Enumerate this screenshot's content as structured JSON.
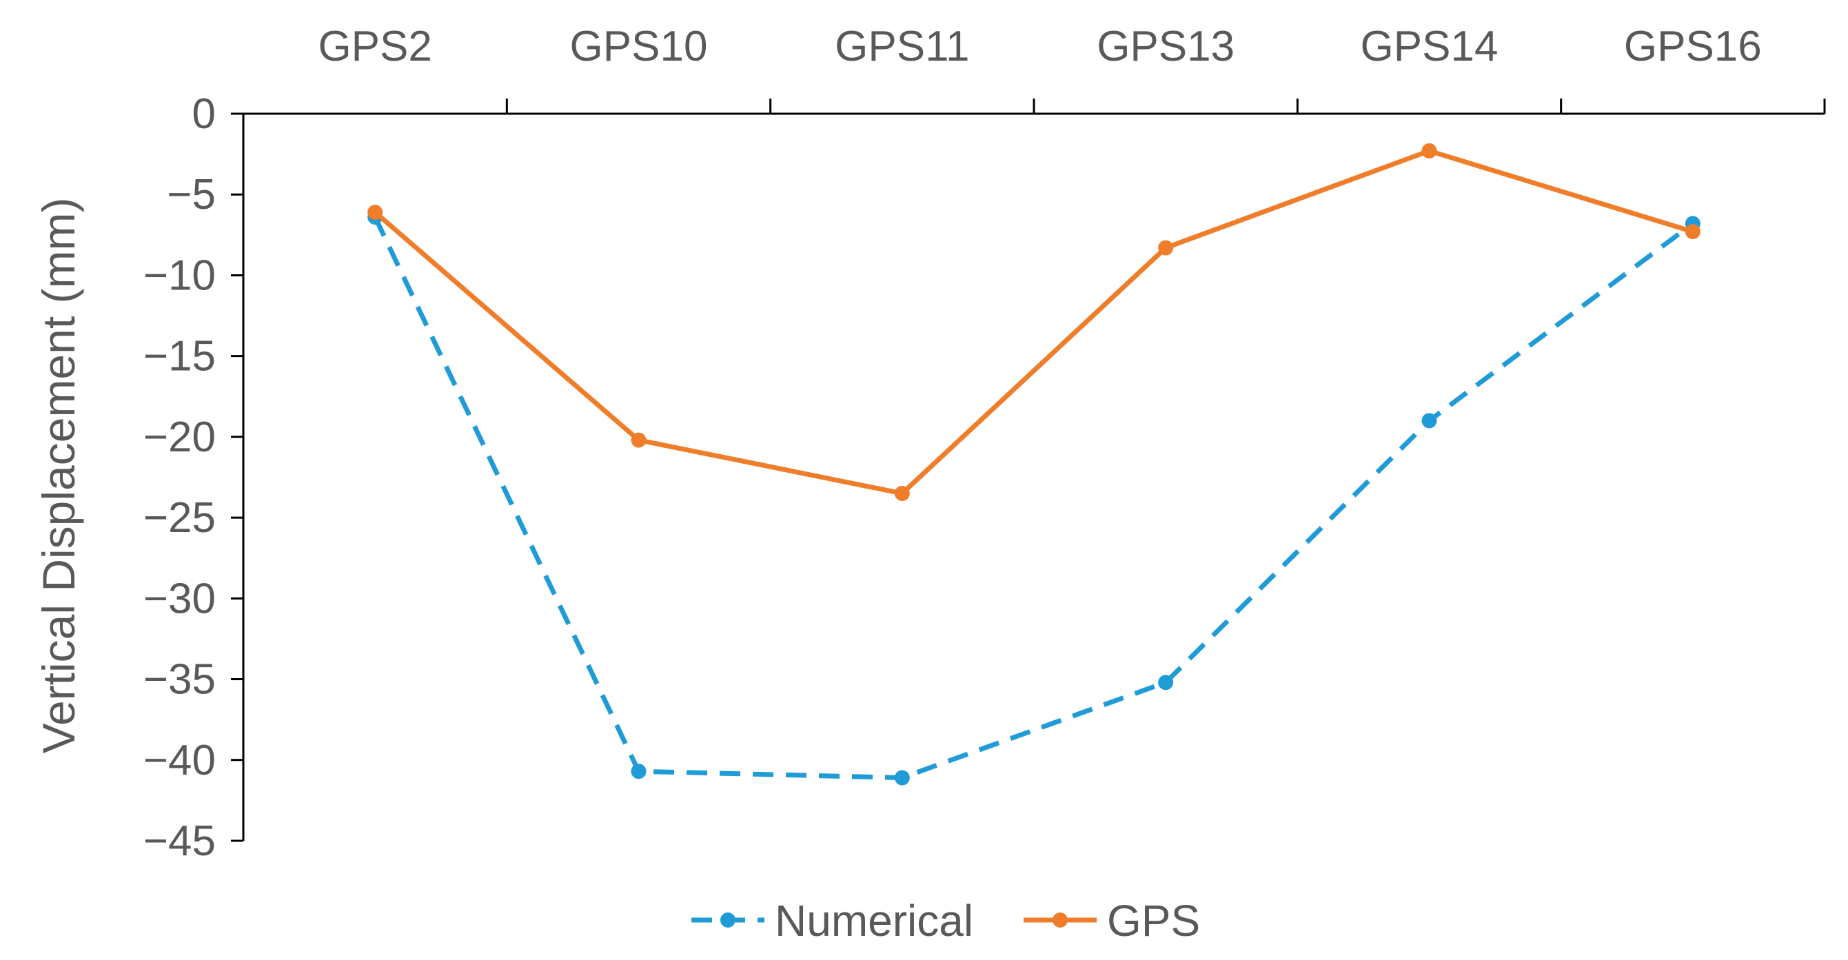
{
  "chart_data": {
    "type": "line",
    "title": "",
    "xlabel": "",
    "ylabel": "Vertical Displacement (mm)",
    "categories": [
      "GPS2",
      "GPS10",
      "GPS11",
      "GPS13",
      "GPS14",
      "GPS16"
    ],
    "x_axis_position": "top",
    "ylim": [
      -45,
      0
    ],
    "yticks": [
      0,
      -5,
      -10,
      -15,
      -20,
      -25,
      -30,
      -35,
      -40,
      -45
    ],
    "grid": false,
    "legend_position": "bottom-center",
    "series": [
      {
        "name": "Numerical",
        "color": "#1f9bd7",
        "line_style": "dashed",
        "values": [
          -6.4,
          -40.7,
          -41.1,
          -35.2,
          -19.0,
          -6.8
        ]
      },
      {
        "name": "GPS",
        "color": "#f07d2a",
        "line_style": "solid",
        "values": [
          -6.1,
          -20.2,
          -23.5,
          -8.3,
          -2.3,
          -7.3
        ]
      }
    ]
  }
}
